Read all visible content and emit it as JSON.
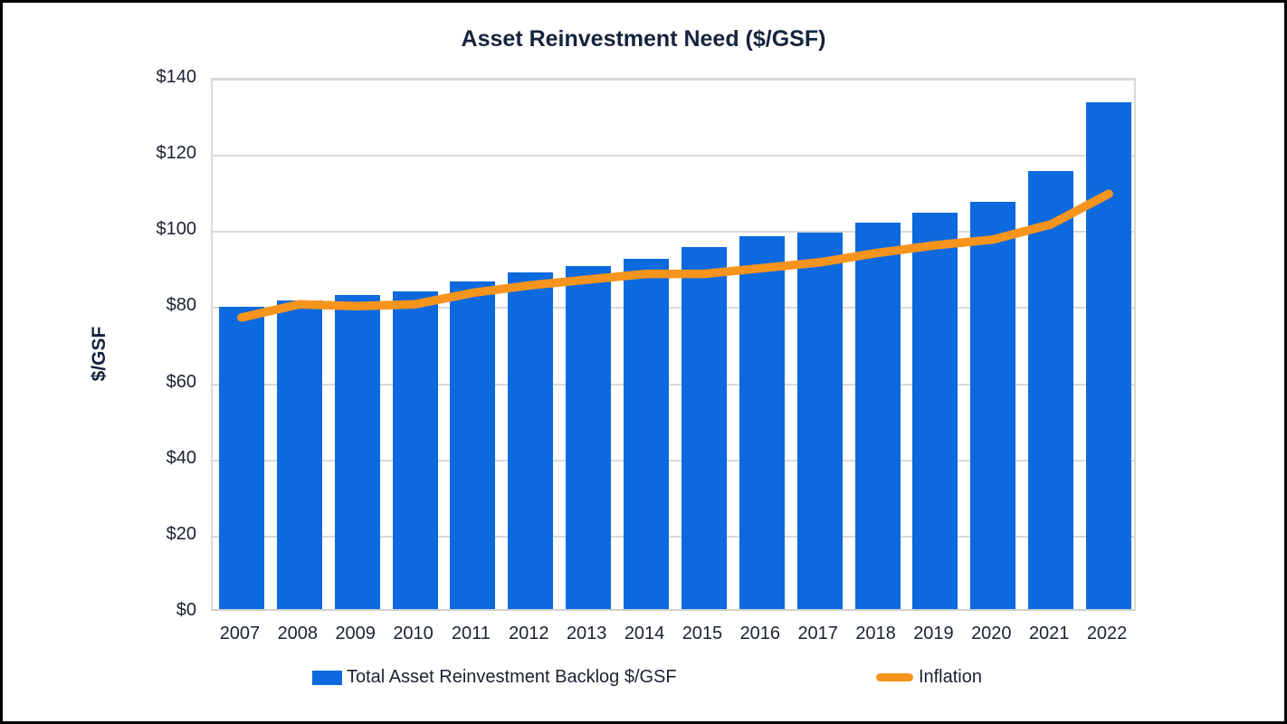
{
  "title": "Asset Reinvestment Need ($/GSF)",
  "y_axis_title": "$/GSF",
  "legend": {
    "bar_label": "Total Asset Reinvestment Backlog $/GSF",
    "line_label": "Inflation"
  },
  "colors": {
    "bar": "#0d69de",
    "line": "#f7941d",
    "grid": "#d9d9d9",
    "title_text": "#16233c",
    "tick_text": "#1a2130",
    "frame": "#000000",
    "background": "#ffffff"
  },
  "chart_data": {
    "type": "bar",
    "subtype": "bar-line-combo",
    "title": "Asset Reinvestment Need ($/GSF)",
    "xlabel": "",
    "ylabel": "$/GSF",
    "categories": [
      "2007",
      "2008",
      "2009",
      "2010",
      "2011",
      "2012",
      "2013",
      "2014",
      "2015",
      "2016",
      "2017",
      "2018",
      "2019",
      "2020",
      "2021",
      "2022"
    ],
    "series": [
      {
        "name": "Total Asset Reinvestment Backlog $/GSF",
        "type": "bar",
        "color": "#0d69de",
        "values": [
          79.5,
          81,
          82.5,
          83.5,
          86,
          88.5,
          90,
          92,
          95,
          98,
          99,
          101.5,
          104,
          107,
          115,
          133
        ]
      },
      {
        "name": "Inflation",
        "type": "line",
        "color": "#f7941d",
        "values": [
          77.5,
          81,
          80.5,
          81,
          84,
          86,
          87.5,
          89,
          89,
          90.5,
          92,
          94.5,
          96.5,
          98,
          102,
          110
        ]
      }
    ],
    "ylim": [
      0,
      140
    ],
    "ytick_step": 20,
    "ytick_labels": [
      "$0",
      "$20",
      "$40",
      "$60",
      "$80",
      "$100",
      "$120",
      "$140"
    ],
    "grid": "horizontal",
    "legend_position": "bottom"
  }
}
